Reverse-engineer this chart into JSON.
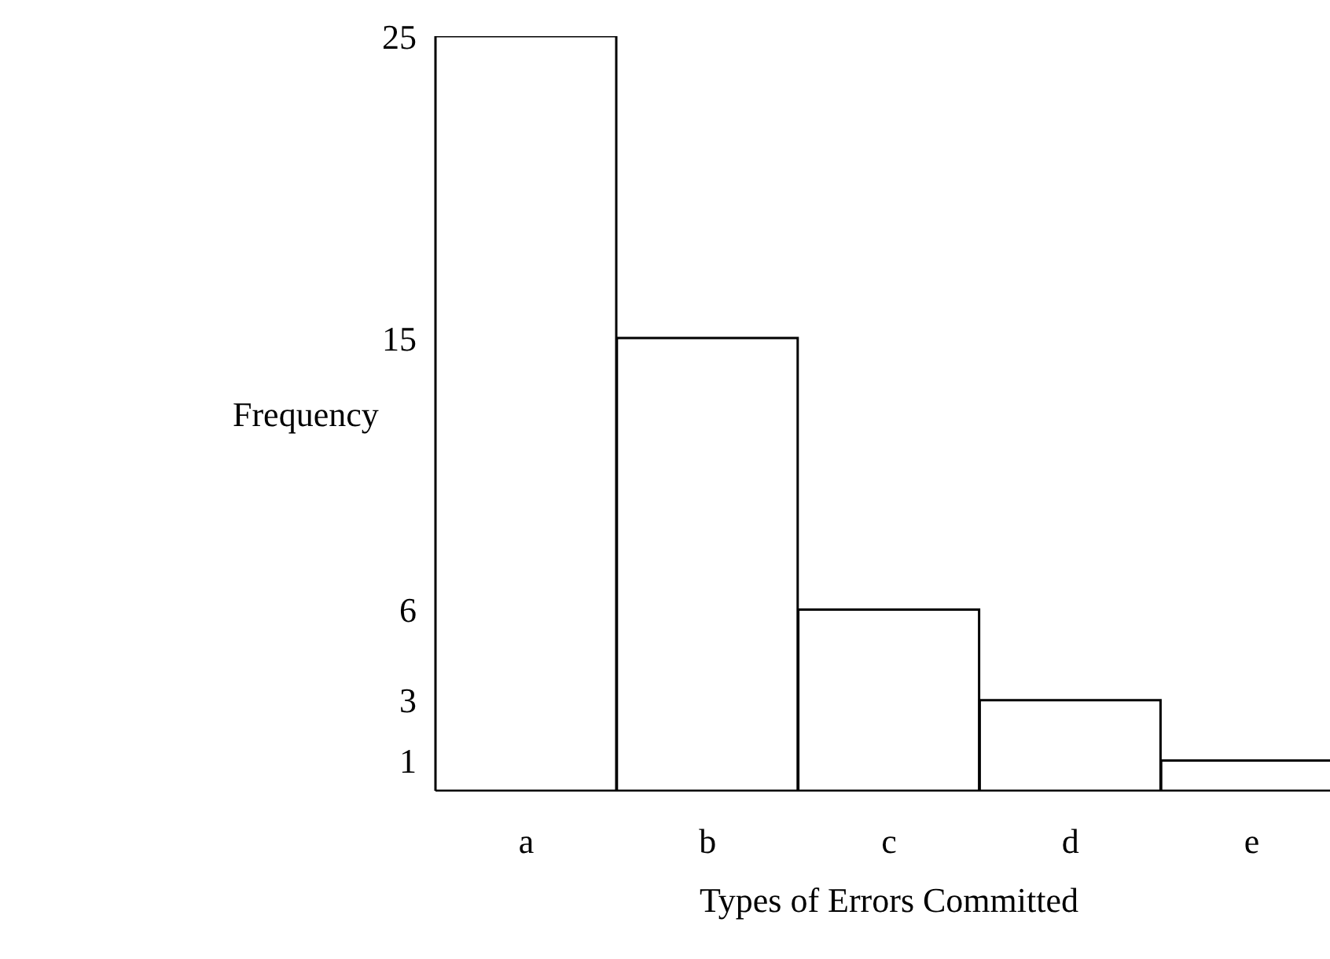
{
  "chart_data": {
    "type": "bar",
    "xlabel": "Types of Errors Committed",
    "ylabel": "Frequency",
    "categories": [
      "a",
      "b",
      "c",
      "d",
      "e"
    ],
    "values": [
      25,
      15,
      6,
      3,
      1
    ],
    "color": "#ffffff",
    "ylim": [
      0,
      25
    ],
    "yticks": [
      1,
      3,
      6,
      15,
      25
    ],
    "grid": false,
    "legend": false
  }
}
